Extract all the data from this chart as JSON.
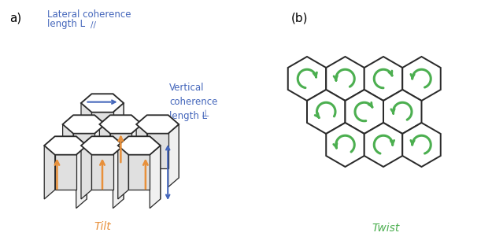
{
  "fig_width": 6.25,
  "fig_height": 3.19,
  "dpi": 100,
  "bg_color": "#ffffff",
  "label_a": "a)",
  "label_b": "(b)",
  "tilt_label": "Tilt",
  "twist_label": "Twist",
  "tilt_color": "#E8903A",
  "twist_color": "#4CAF50",
  "blue_color": "#4466BB",
  "hex_edge_color": "#2a2a2a",
  "hex_lw": 1.3,
  "lateral_text_line1": "Lateral coherence",
  "lateral_text_line2": "length L",
  "lateral_subscript": "//",
  "vertical_text": "Vertical\ncoherence\nlength L",
  "vertical_subscript": "⊥",
  "orange_color": "#E8903A"
}
